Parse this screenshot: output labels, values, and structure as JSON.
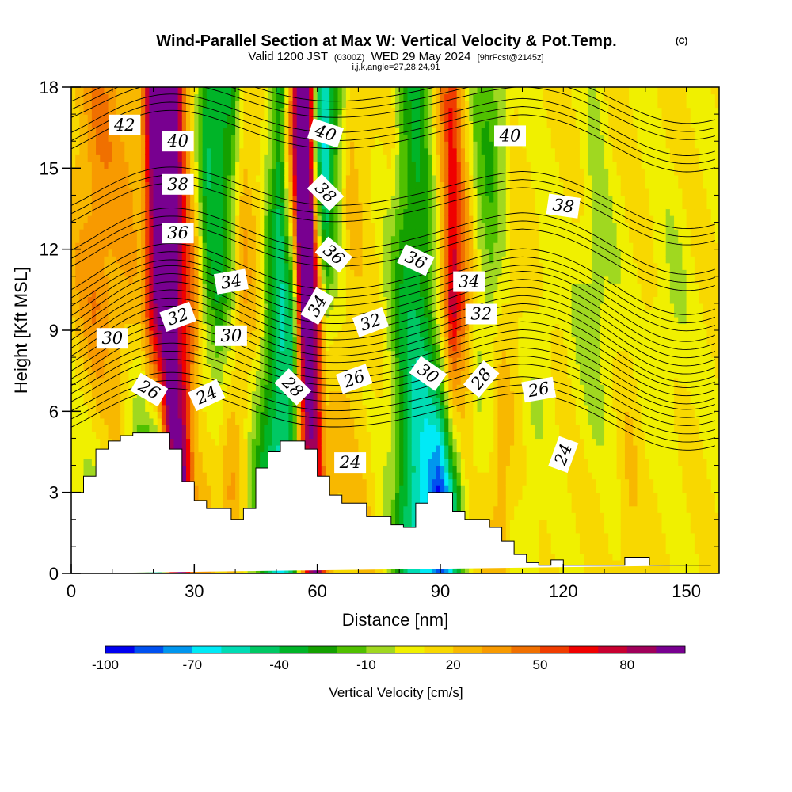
{
  "chart_data": {
    "type": "heatmap",
    "title": "Wind-Parallel Section at Max W: Vertical Velocity & Pot.Temp.",
    "title_mark": "(C)",
    "subtitle_pre": "Valid 1200 JST",
    "subtitle_utc": "(0300Z)",
    "subtitle_date": "WED 29 May 2024",
    "subtitle_fcst": "[9hrFcst@2145z]",
    "subtitle2": "i,j,k,angle=27,28,24,91",
    "xlabel": "Distance [nm]",
    "ylabel": "Height [Kft MSL]",
    "xlim": [
      0,
      158
    ],
    "ylim": [
      0,
      18
    ],
    "x_ticks": [
      "0",
      "30",
      "60",
      "90",
      "120",
      "150"
    ],
    "x_tick_values": [
      0,
      30,
      60,
      90,
      120,
      150
    ],
    "y_ticks": [
      "0",
      "3",
      "6",
      "9",
      "12",
      "15",
      "18"
    ],
    "y_tick_values": [
      0,
      3,
      6,
      9,
      12,
      15,
      18
    ],
    "grid": false,
    "terrain": {
      "x": [
        0,
        3,
        3,
        6,
        6,
        9,
        9,
        12,
        12,
        15,
        15,
        18,
        18,
        24,
        24,
        27,
        27,
        30,
        30,
        33,
        33,
        39,
        39,
        42,
        42,
        45,
        45,
        48,
        48,
        51,
        51,
        57,
        57,
        60,
        60,
        63,
        63,
        66,
        66,
        72,
        72,
        78,
        78,
        81,
        81,
        84,
        84,
        87,
        87,
        93,
        93,
        96,
        96,
        102,
        102,
        105,
        105,
        108,
        108,
        111,
        111,
        114,
        114,
        117,
        117,
        120,
        120,
        135,
        135,
        141,
        141,
        150,
        150,
        156,
        156,
        158
      ],
      "y": [
        3,
        3,
        3.6,
        3.6,
        4.6,
        4.6,
        4.9,
        4.9,
        5.1,
        5.1,
        5.2,
        5.2,
        5.2,
        5.2,
        4.6,
        4.6,
        3.4,
        3.4,
        2.7,
        2.7,
        2.4,
        2.4,
        2.0,
        2.0,
        2.4,
        2.4,
        3.9,
        3.9,
        4.5,
        4.5,
        4.9,
        4.9,
        4.6,
        4.6,
        3.6,
        3.6,
        2.9,
        2.9,
        2.6,
        2.6,
        2.1,
        2.1,
        1.8,
        1.8,
        1.7,
        1.7,
        2.6,
        2.6,
        3.0,
        3.0,
        2.3,
        2.3,
        2.0,
        2.0,
        1.7,
        1.7,
        1.2,
        1.2,
        0.7,
        0.7,
        0.4,
        0.4,
        0.3,
        0.3,
        0.5,
        0.5,
        0.3,
        0.3,
        0.6,
        0.6,
        0.3,
        0.3,
        0.3,
        0.3,
        0.3
      ]
    },
    "wcol": [
      {
        "x": 0,
        "w": 2,
        "topw": 2,
        "botw": 0
      },
      {
        "x": 6,
        "w": 4,
        "topw": 4,
        "botw": 0
      },
      {
        "x": 12,
        "w": 3,
        "topw": 3,
        "botw": 1
      },
      {
        "x": 17,
        "w": 2,
        "topw": 3,
        "botw": -2
      },
      {
        "x": 21,
        "w": 10,
        "topw": 14,
        "botw": -6
      },
      {
        "x": 24,
        "w": 14,
        "topw": 16,
        "botw": 6
      },
      {
        "x": 27,
        "w": 7,
        "topw": 6,
        "botw": 10
      },
      {
        "x": 30,
        "w": 4,
        "topw": 1,
        "botw": 3
      },
      {
        "x": 33,
        "w": -2,
        "topw": -4,
        "botw": 3
      },
      {
        "x": 36,
        "w": -3,
        "topw": -4,
        "botw": 2
      },
      {
        "x": 39,
        "w": 0,
        "topw": -3,
        "botw": 3
      },
      {
        "x": 42,
        "w": 3,
        "topw": 2,
        "botw": 1
      },
      {
        "x": 45,
        "w": 2,
        "topw": 2,
        "botw": -2
      },
      {
        "x": 48,
        "w": -2,
        "topw": 0,
        "botw": -4
      },
      {
        "x": 51,
        "w": -5,
        "topw": -4,
        "botw": -6
      },
      {
        "x": 54,
        "w": -3,
        "topw": 6,
        "botw": -4
      },
      {
        "x": 56,
        "w": 9,
        "topw": 15,
        "botw": 2
      },
      {
        "x": 58,
        "w": 15,
        "topw": 10,
        "botw": 8
      },
      {
        "x": 60,
        "w": 6,
        "topw": -4,
        "botw": 9
      },
      {
        "x": 62,
        "w": -1,
        "topw": -7,
        "botw": 4
      },
      {
        "x": 65,
        "w": 1,
        "topw": -2,
        "botw": 2
      },
      {
        "x": 68,
        "w": 2,
        "topw": 2,
        "botw": 2
      },
      {
        "x": 72,
        "w": 1,
        "topw": 2,
        "botw": 2
      },
      {
        "x": 75,
        "w": 1,
        "topw": 1,
        "botw": 1
      },
      {
        "x": 78,
        "w": -1,
        "topw": 1,
        "botw": 0
      },
      {
        "x": 81,
        "w": -3,
        "topw": -2,
        "botw": -4
      },
      {
        "x": 84,
        "w": -4,
        "topw": -3,
        "botw": -6
      },
      {
        "x": 87,
        "w": -3,
        "topw": -1,
        "botw": -7
      },
      {
        "x": 90,
        "w": 1,
        "topw": 3,
        "botw": -9
      },
      {
        "x": 93,
        "w": 9,
        "topw": 6,
        "botw": -5
      },
      {
        "x": 96,
        "w": 5,
        "topw": 2,
        "botw": 0
      },
      {
        "x": 99,
        "w": 0,
        "topw": -1,
        "botw": 1
      },
      {
        "x": 102,
        "w": -1,
        "topw": -2,
        "botw": 2
      },
      {
        "x": 105,
        "w": 1,
        "topw": -1,
        "botw": 3
      },
      {
        "x": 108,
        "w": 2,
        "topw": 1,
        "botw": 1
      },
      {
        "x": 112,
        "w": 1,
        "topw": 1,
        "botw": 0
      },
      {
        "x": 116,
        "w": 0,
        "topw": 1,
        "botw": 1
      },
      {
        "x": 120,
        "w": 1,
        "topw": 1,
        "botw": 1
      },
      {
        "x": 124,
        "w": 0,
        "topw": 1,
        "botw": 1
      },
      {
        "x": 128,
        "w": -1,
        "topw": 0,
        "botw": 1
      },
      {
        "x": 132,
        "w": 0,
        "topw": 1,
        "botw": 1
      },
      {
        "x": 136,
        "w": 1,
        "topw": 1,
        "botw": 2
      },
      {
        "x": 140,
        "w": 1,
        "topw": 1,
        "botw": 1
      },
      {
        "x": 144,
        "w": 0,
        "topw": 1,
        "botw": 1
      },
      {
        "x": 148,
        "w": 0,
        "topw": 1,
        "botw": 1
      },
      {
        "x": 152,
        "w": 1,
        "topw": 1,
        "botw": 1
      },
      {
        "x": 156,
        "w": 1,
        "topw": 1,
        "botw": 1
      },
      {
        "x": 158,
        "w": 1,
        "topw": 1,
        "botw": 1
      }
    ],
    "theta_levels": [
      {
        "label": "24",
        "y0": 6.0,
        "amp": 1.0
      },
      {
        "label": "26",
        "y0": 7.0,
        "amp": 1.1
      },
      {
        "label": "28",
        "y0": 7.9,
        "amp": 1.2
      },
      {
        "label": "30",
        "y0": 8.8,
        "amp": 1.3
      },
      {
        "label": "32",
        "y0": 9.7,
        "amp": 1.3
      },
      {
        "label": "34",
        "y0": 10.6,
        "amp": 1.2
      },
      {
        "label": "36",
        "y0": 12.0,
        "amp": 1.1
      },
      {
        "label": "38",
        "y0": 13.6,
        "amp": 1.0
      },
      {
        "label": "40",
        "y0": 16.3,
        "amp": 1.0
      },
      {
        "label": "42",
        "y0": 17.4,
        "amp": 0.9
      }
    ],
    "contour_labels": [
      {
        "text": "42",
        "x": 13,
        "y": 16.6,
        "angle": 0
      },
      {
        "text": "40",
        "x": 26,
        "y": 16.0,
        "angle": 0
      },
      {
        "text": "38",
        "x": 26,
        "y": 14.4,
        "angle": 0
      },
      {
        "text": "36",
        "x": 26,
        "y": 12.6,
        "angle": 0
      },
      {
        "text": "34",
        "x": 39,
        "y": 10.8,
        "angle": -10
      },
      {
        "text": "32",
        "x": 26,
        "y": 9.5,
        "angle": -20
      },
      {
        "text": "30",
        "x": 39,
        "y": 8.8,
        "angle": 0
      },
      {
        "text": "30",
        "x": 10,
        "y": 8.7,
        "angle": 0
      },
      {
        "text": "26",
        "x": 19,
        "y": 6.8,
        "angle": 30
      },
      {
        "text": "24",
        "x": 33,
        "y": 6.6,
        "angle": -25
      },
      {
        "text": "40",
        "x": 62,
        "y": 16.3,
        "angle": 18
      },
      {
        "text": "38",
        "x": 62,
        "y": 14.1,
        "angle": 45
      },
      {
        "text": "36",
        "x": 64,
        "y": 11.8,
        "angle": 40
      },
      {
        "text": "34",
        "x": 60,
        "y": 9.9,
        "angle": -60
      },
      {
        "text": "32",
        "x": 73,
        "y": 9.3,
        "angle": -20
      },
      {
        "text": "28",
        "x": 54,
        "y": 6.9,
        "angle": 45
      },
      {
        "text": "26",
        "x": 69,
        "y": 7.2,
        "angle": -20
      },
      {
        "text": "24",
        "x": 68,
        "y": 4.1,
        "angle": 0
      },
      {
        "text": "40",
        "x": 107,
        "y": 16.2,
        "angle": 0
      },
      {
        "text": "38",
        "x": 120,
        "y": 13.6,
        "angle": 8
      },
      {
        "text": "36",
        "x": 84,
        "y": 11.6,
        "angle": 25
      },
      {
        "text": "34",
        "x": 97,
        "y": 10.8,
        "angle": 0
      },
      {
        "text": "32",
        "x": 100,
        "y": 9.6,
        "angle": 0
      },
      {
        "text": "30",
        "x": 87,
        "y": 7.4,
        "angle": 35
      },
      {
        "text": "28",
        "x": 100,
        "y": 7.2,
        "angle": -50
      },
      {
        "text": "26",
        "x": 114,
        "y": 6.8,
        "angle": -10
      },
      {
        "text": "24",
        "x": 120,
        "y": 4.4,
        "angle": -70
      }
    ],
    "colorbar": {
      "label": "Vertical Velocity [cm/s]",
      "tick_labels": [
        "-100",
        "-70",
        "-40",
        "-10",
        "20",
        "50",
        "80"
      ],
      "tick_values": [
        -100,
        -70,
        -40,
        -10,
        20,
        50,
        80
      ],
      "levels": [
        -100,
        -90,
        -80,
        -70,
        -60,
        -50,
        -40,
        -30,
        -20,
        -10,
        0,
        10,
        20,
        30,
        40,
        50,
        60,
        70,
        80,
        90
      ],
      "colors": [
        "#0000f0",
        "#0050f0",
        "#0096ee",
        "#00eaf6",
        "#00dcb4",
        "#00c864",
        "#00b428",
        "#14a000",
        "#50c000",
        "#a0d820",
        "#f0f000",
        "#f8d800",
        "#f8b800",
        "#f89a00",
        "#f07000",
        "#f03c00",
        "#f00000",
        "#c80030",
        "#a0005a",
        "#780090"
      ]
    }
  }
}
